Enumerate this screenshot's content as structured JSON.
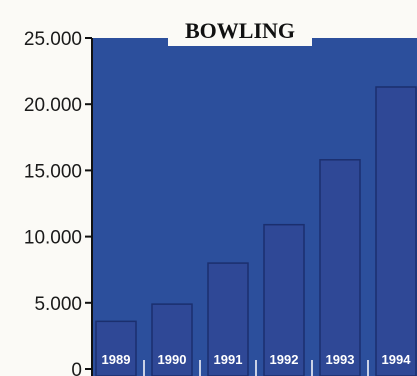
{
  "chart_data": {
    "type": "bar",
    "title": "BOWLING",
    "xlabel": "",
    "ylabel": "",
    "categories": [
      "1989",
      "1990",
      "1991",
      "1992",
      "1993",
      "1994"
    ],
    "values": [
      3600,
      4900,
      8000,
      10900,
      15800,
      21300
    ],
    "ylim": [
      0,
      25000
    ],
    "yticks": [
      0,
      5000,
      10000,
      15000,
      20000,
      25000
    ],
    "ytick_labels": [
      "0",
      "5.000",
      "10.000",
      "15.000",
      "20.000",
      "25.000"
    ],
    "grid": false,
    "legend": "none",
    "colors": {
      "plot_background": "#2c4f9c",
      "bar": "#2f4896",
      "bar_edge": "#1b2f6e",
      "page_background": "#fbfaf6",
      "axis": "#111111"
    }
  }
}
